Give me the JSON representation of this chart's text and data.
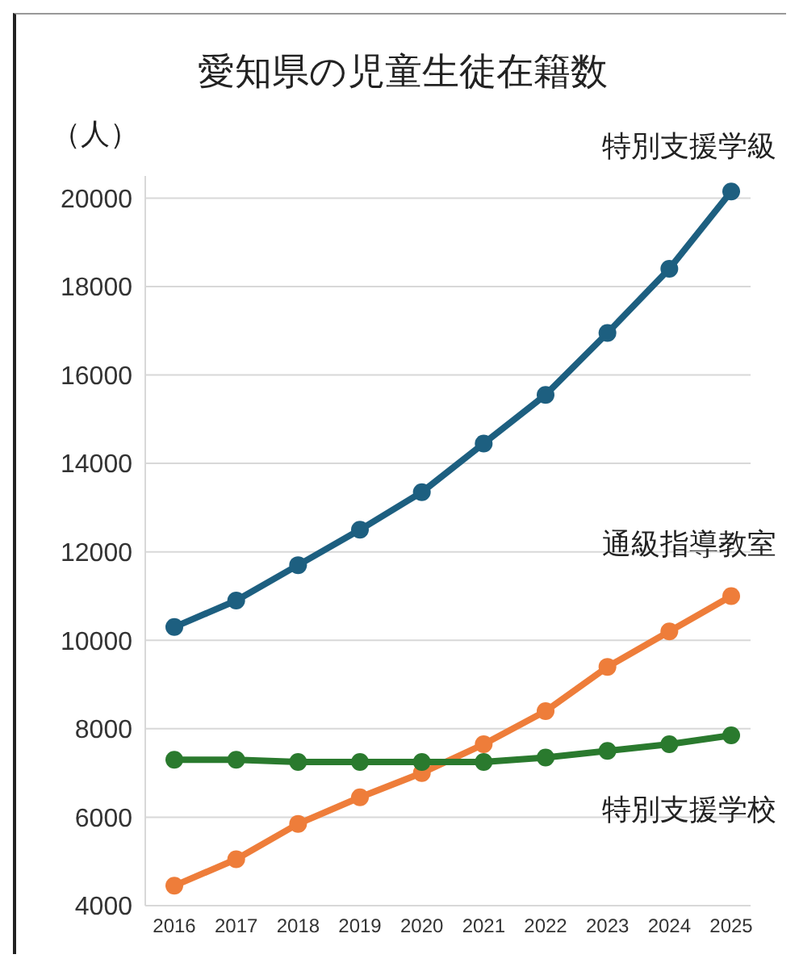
{
  "chart_data": {
    "type": "line",
    "title": "愛知県の児童生徒在籍数",
    "ylabel": "（人）",
    "categories": [
      "2016",
      "2017",
      "2018",
      "2019",
      "2020",
      "2021",
      "2022",
      "2023",
      "2024",
      "2025"
    ],
    "series": [
      {
        "name": "特別支援学級",
        "color": "#1d5f80",
        "values": [
          10300,
          10900,
          11700,
          12500,
          13350,
          14450,
          15550,
          16950,
          18400,
          20150
        ]
      },
      {
        "name": "通級指導教室",
        "color": "#ee7d3a",
        "values": [
          4450,
          5050,
          5850,
          6450,
          7000,
          7650,
          8400,
          9400,
          10200,
          11000
        ]
      },
      {
        "name": "特別支援学校",
        "color": "#2a7a2e",
        "values": [
          7300,
          7300,
          7250,
          7250,
          7250,
          7250,
          7350,
          7500,
          7650,
          7850
        ]
      }
    ],
    "ylim": [
      4000,
      20500
    ],
    "yticks": [
      4000,
      6000,
      8000,
      10000,
      12000,
      14000,
      16000,
      18000,
      20000
    ],
    "grid": "y",
    "marker": "circle",
    "line_style": "solid"
  }
}
